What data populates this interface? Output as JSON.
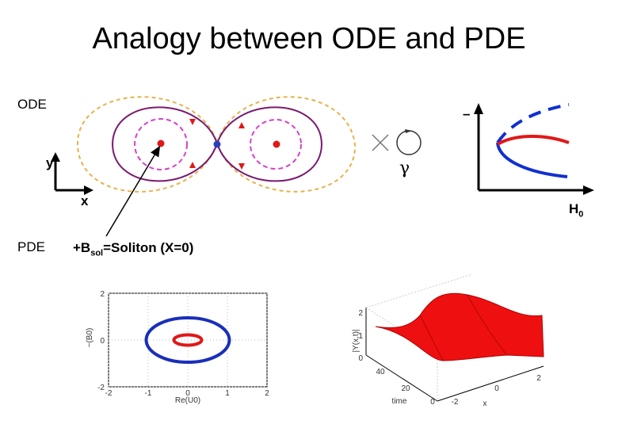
{
  "title": "Analogy between ODE and PDE",
  "labels": {
    "ode": "ODE",
    "pde": "PDE",
    "y_axis": "y",
    "x_axis": "x",
    "gamma": "γ",
    "bifurcation_y": "–",
    "bifurcation_x": "H",
    "bifurcation_x_sub": "0",
    "soliton_pre": "+B",
    "soliton_sub": "sol",
    "soliton_post": "=Soliton (X=0)"
  },
  "colors": {
    "outer_orbit": "#e8b24a",
    "homoclinic": "#7a1a6e",
    "inner_orbit": "#d640c8",
    "fixed_point_center": "#e01818",
    "fixed_point_saddle": "#2a3fb8",
    "unstable_branch": "#1030d0",
    "stable_branch": "#e01818",
    "surface": "#ee1010"
  },
  "chart_data": [
    {
      "type": "line",
      "title": "",
      "xlabel": "Re(U0)",
      "ylabel": "~(B0)",
      "x_ticks": [
        "-2",
        "-1",
        "0",
        "1",
        "2"
      ],
      "y_ticks": [
        "2",
        "0",
        "-2"
      ],
      "xlim": [
        -2,
        2
      ],
      "ylim": [
        -2,
        2
      ],
      "series": [
        {
          "color": "#1a2fb8",
          "shape": "ellipse",
          "center": [
            0,
            0
          ],
          "rx": 1.05,
          "ry": 0.95
        },
        {
          "color": "#e01818",
          "shape": "ellipse",
          "center": [
            0,
            0
          ],
          "rx": 0.35,
          "ry": 0.22
        }
      ]
    },
    {
      "type": "area",
      "title": "",
      "xlabel": "x",
      "ylabel": "|Y(x,t)|",
      "time_label": "time",
      "time_ticks": [
        "0",
        "20",
        "40"
      ],
      "x_ticks": [
        "-2",
        "0",
        "2"
      ],
      "z_ticks": [
        "0",
        "1",
        "2"
      ]
    }
  ]
}
